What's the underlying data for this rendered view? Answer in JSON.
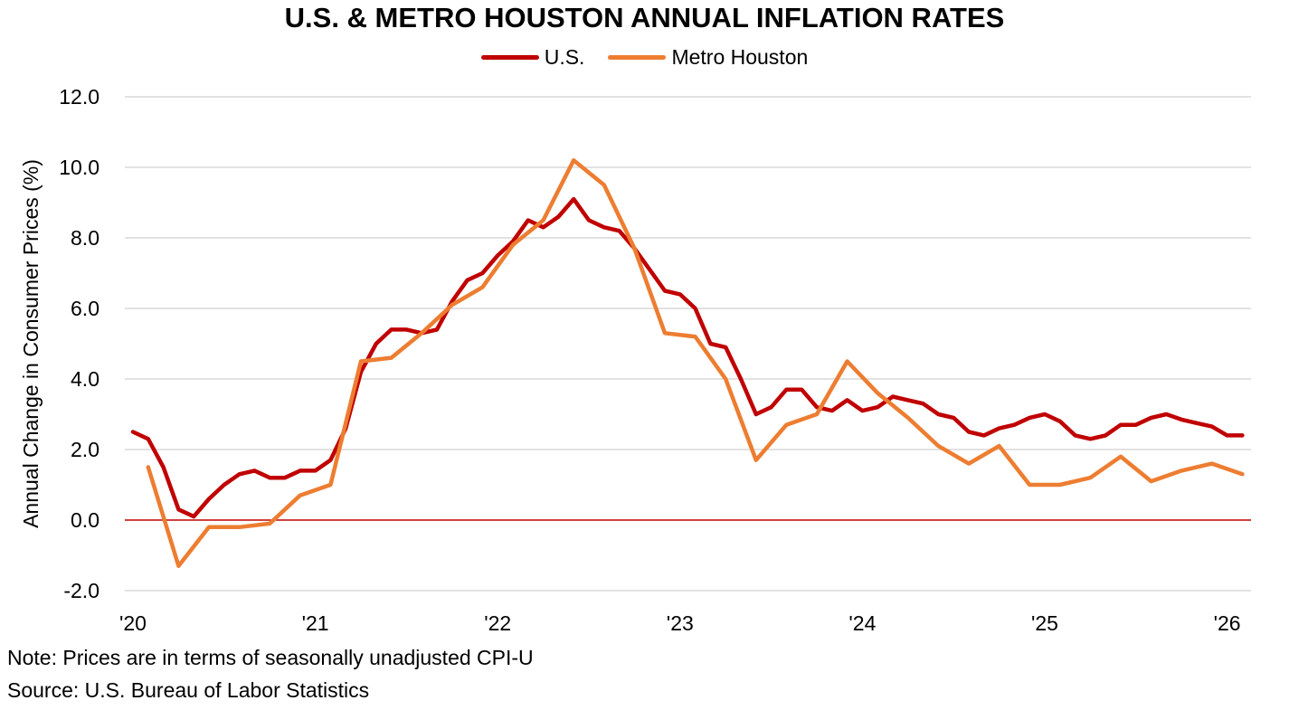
{
  "chart_data": {
    "type": "line",
    "title": "U.S. & METRO HOUSTON ANNUAL INFLATION RATES",
    "xlabel": "",
    "ylabel": "Annual Change in Consumer Prices (%)",
    "ylim": [
      -2.0,
      12.0
    ],
    "yticks": [
      -2.0,
      0.0,
      2.0,
      4.0,
      6.0,
      8.0,
      10.0,
      12.0
    ],
    "ytick_labels": [
      "-2.0",
      "0.0",
      "2.0",
      "4.0",
      "6.0",
      "8.0",
      "10.0",
      "12.0"
    ],
    "xticks": [
      {
        "label": "'20",
        "month_index": 0
      },
      {
        "label": "'21",
        "month_index": 12
      },
      {
        "label": "'22",
        "month_index": 24
      },
      {
        "label": "'23",
        "month_index": 36
      },
      {
        "label": "'24",
        "month_index": 48
      },
      {
        "label": "'25",
        "month_index": 60
      },
      {
        "label": "'26",
        "month_index": 72
      }
    ],
    "x_unit": "months since Jan 2020",
    "xlim": [
      -0.5,
      74.5
    ],
    "grid": true,
    "zero_line": true,
    "legend_position": "top-center",
    "series": [
      {
        "name": "U.S.",
        "color": "#C00000",
        "x": [
          0,
          1,
          2,
          3,
          4,
          5,
          6,
          7,
          8,
          9,
          10,
          11,
          12,
          13,
          14,
          15,
          16,
          17,
          18,
          19,
          20,
          21,
          22,
          23,
          24,
          25,
          26,
          27,
          28,
          29,
          30,
          31,
          32,
          33,
          34,
          35,
          36,
          37,
          38,
          39,
          40,
          41,
          42,
          43,
          44,
          45,
          46,
          47,
          48,
          49,
          50,
          51,
          52,
          53,
          54,
          55,
          56,
          57,
          58,
          59,
          60,
          61,
          62,
          63,
          64,
          65,
          66,
          67,
          68,
          69,
          70,
          71,
          72,
          73
        ],
        "values": [
          2.5,
          2.3,
          1.5,
          0.3,
          0.1,
          0.6,
          1.0,
          1.3,
          1.4,
          1.2,
          1.2,
          1.4,
          1.4,
          1.7,
          2.6,
          4.2,
          5.0,
          5.4,
          5.4,
          5.3,
          5.4,
          6.2,
          6.8,
          7.0,
          7.5,
          7.9,
          8.5,
          8.3,
          8.6,
          9.1,
          8.5,
          8.3,
          8.2,
          7.7,
          7.1,
          6.5,
          6.4,
          6.0,
          5.0,
          4.9,
          4.0,
          3.0,
          3.2,
          3.7,
          3.7,
          3.2,
          3.1,
          3.4,
          3.1,
          3.2,
          3.5,
          3.4,
          3.3,
          3.0,
          2.9,
          2.5,
          2.4,
          2.6,
          2.7,
          2.9,
          3.0,
          2.8,
          2.4,
          2.3,
          2.4,
          2.7,
          2.7,
          2.9,
          3.0,
          2.85,
          2.75,
          2.65,
          2.4,
          2.4
        ]
      },
      {
        "name": "Metro Houston",
        "color": "#ED7D31",
        "x": [
          1,
          3,
          5,
          7,
          9,
          11,
          13,
          15,
          17,
          19,
          21,
          23,
          25,
          27,
          29,
          31,
          33,
          35,
          37,
          39,
          41,
          43,
          45,
          47,
          49,
          51,
          53,
          55,
          57,
          59,
          61,
          63,
          65,
          67,
          69,
          71,
          73
        ],
        "values": [
          1.5,
          -1.3,
          -0.2,
          -0.2,
          -0.1,
          0.7,
          1.0,
          4.5,
          4.6,
          5.3,
          6.1,
          6.6,
          7.8,
          8.5,
          10.2,
          9.5,
          7.7,
          5.3,
          5.2,
          4.0,
          1.7,
          2.7,
          3.0,
          4.5,
          3.6,
          2.9,
          2.1,
          1.6,
          2.1,
          1.0,
          1.0,
          1.2,
          1.8,
          1.1,
          1.4,
          1.6,
          1.3
        ]
      }
    ]
  },
  "notes": {
    "note": "Note: Prices are in terms of seasonally unadjusted CPI-U",
    "source": "Source: U.S. Bureau of Labor Statistics"
  },
  "colors": {
    "us": "#C00000",
    "houston": "#ED7D31",
    "grid": "#D9D9D9",
    "zero_line": "#C00000"
  }
}
